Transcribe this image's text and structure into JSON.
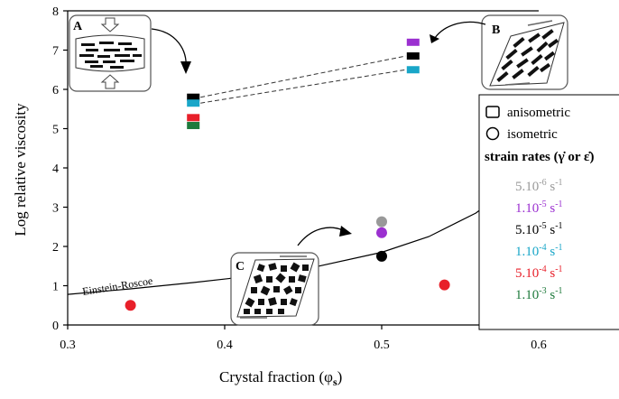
{
  "chart_data": {
    "type": "scatter",
    "xlabel": "Crystal fraction (φ",
    "xlabel_sub": "s",
    "xlabel_close": ")",
    "ylabel": "Log relative viscosity",
    "xlim": [
      0.3,
      0.6
    ],
    "ylim": [
      0,
      8
    ],
    "x_ticks": [
      "0.3",
      "0.4",
      "0.5",
      "0.6"
    ],
    "y_ticks": [
      "0",
      "1",
      "2",
      "3",
      "4",
      "5",
      "6",
      "7",
      "8"
    ],
    "grid": false,
    "legend_position": "right",
    "colors": {
      "5.10-6": "#999999",
      "1.10-5": "#9b30d0",
      "5.10-5": "#000000",
      "1.10-4": "#19a6c8",
      "5.10-4": "#e8202a",
      "1.10-3": "#1e7a3c"
    },
    "series": [
      {
        "name": "5.10-6 s-1",
        "points": [
          {
            "x": 0.5,
            "y": 2.63,
            "shape": "circle"
          }
        ]
      },
      {
        "name": "1.10-5 s-1",
        "points": [
          {
            "x": 0.5,
            "y": 2.35,
            "shape": "circle"
          },
          {
            "x": 0.52,
            "y": 7.2,
            "shape": "rect"
          }
        ]
      },
      {
        "name": "5.10-5 s-1",
        "points": [
          {
            "x": 0.5,
            "y": 1.75,
            "shape": "circle"
          },
          {
            "x": 0.38,
            "y": 5.8,
            "shape": "rect"
          },
          {
            "x": 0.52,
            "y": 6.85,
            "shape": "rect"
          }
        ]
      },
      {
        "name": "1.10-4 s-1",
        "points": [
          {
            "x": 0.38,
            "y": 5.65,
            "shape": "rect"
          },
          {
            "x": 0.52,
            "y": 6.5,
            "shape": "rect"
          }
        ]
      },
      {
        "name": "5.10-4 s-1",
        "points": [
          {
            "x": 0.34,
            "y": 0.5,
            "shape": "circle"
          },
          {
            "x": 0.54,
            "y": 1.02,
            "shape": "circle"
          },
          {
            "x": 0.38,
            "y": 5.28,
            "shape": "rect"
          }
        ]
      },
      {
        "name": "1.10-3 s-1",
        "points": [
          {
            "x": 0.38,
            "y": 5.08,
            "shape": "rect"
          }
        ]
      }
    ],
    "einstein_roscoe_curve": {
      "label": "Einstein-Roscoe",
      "x": [
        0.3,
        0.34,
        0.38,
        0.42,
        0.46,
        0.5,
        0.53,
        0.56,
        0.575
      ],
      "y": [
        0.78,
        0.92,
        1.08,
        1.26,
        1.5,
        1.85,
        2.25,
        2.85,
        3.3
      ]
    },
    "dashed_links": [
      {
        "from": {
          "x": 0.38,
          "y": 5.8
        },
        "to": {
          "x": 0.52,
          "y": 6.85
        }
      },
      {
        "from": {
          "x": 0.38,
          "y": 5.65
        },
        "to": {
          "x": 0.52,
          "y": 6.5
        }
      }
    ],
    "insets": [
      {
        "label": "A"
      },
      {
        "label": "B"
      },
      {
        "label": "C"
      }
    ]
  },
  "legend": {
    "anisometric": "anisometric",
    "isometric": "isometric",
    "strain_title": "strain rates (γ̇ or ε̇)",
    "entries": [
      {
        "coef": "5.10",
        "exp": "-6",
        "unit": " s",
        "uexp": "-1"
      },
      {
        "coef": "1.10",
        "exp": "-5",
        "unit": " s",
        "uexp": "-1"
      },
      {
        "coef": "5.10",
        "exp": "-5",
        "unit": " s",
        "uexp": "-1"
      },
      {
        "coef": "1.10",
        "exp": "-4",
        "unit": " s",
        "uexp": "-1"
      },
      {
        "coef": "5.10",
        "exp": "-4",
        "unit": " s",
        "uexp": "-1"
      },
      {
        "coef": "1.10",
        "exp": "-3",
        "unit": " s",
        "uexp": "-1"
      }
    ]
  }
}
